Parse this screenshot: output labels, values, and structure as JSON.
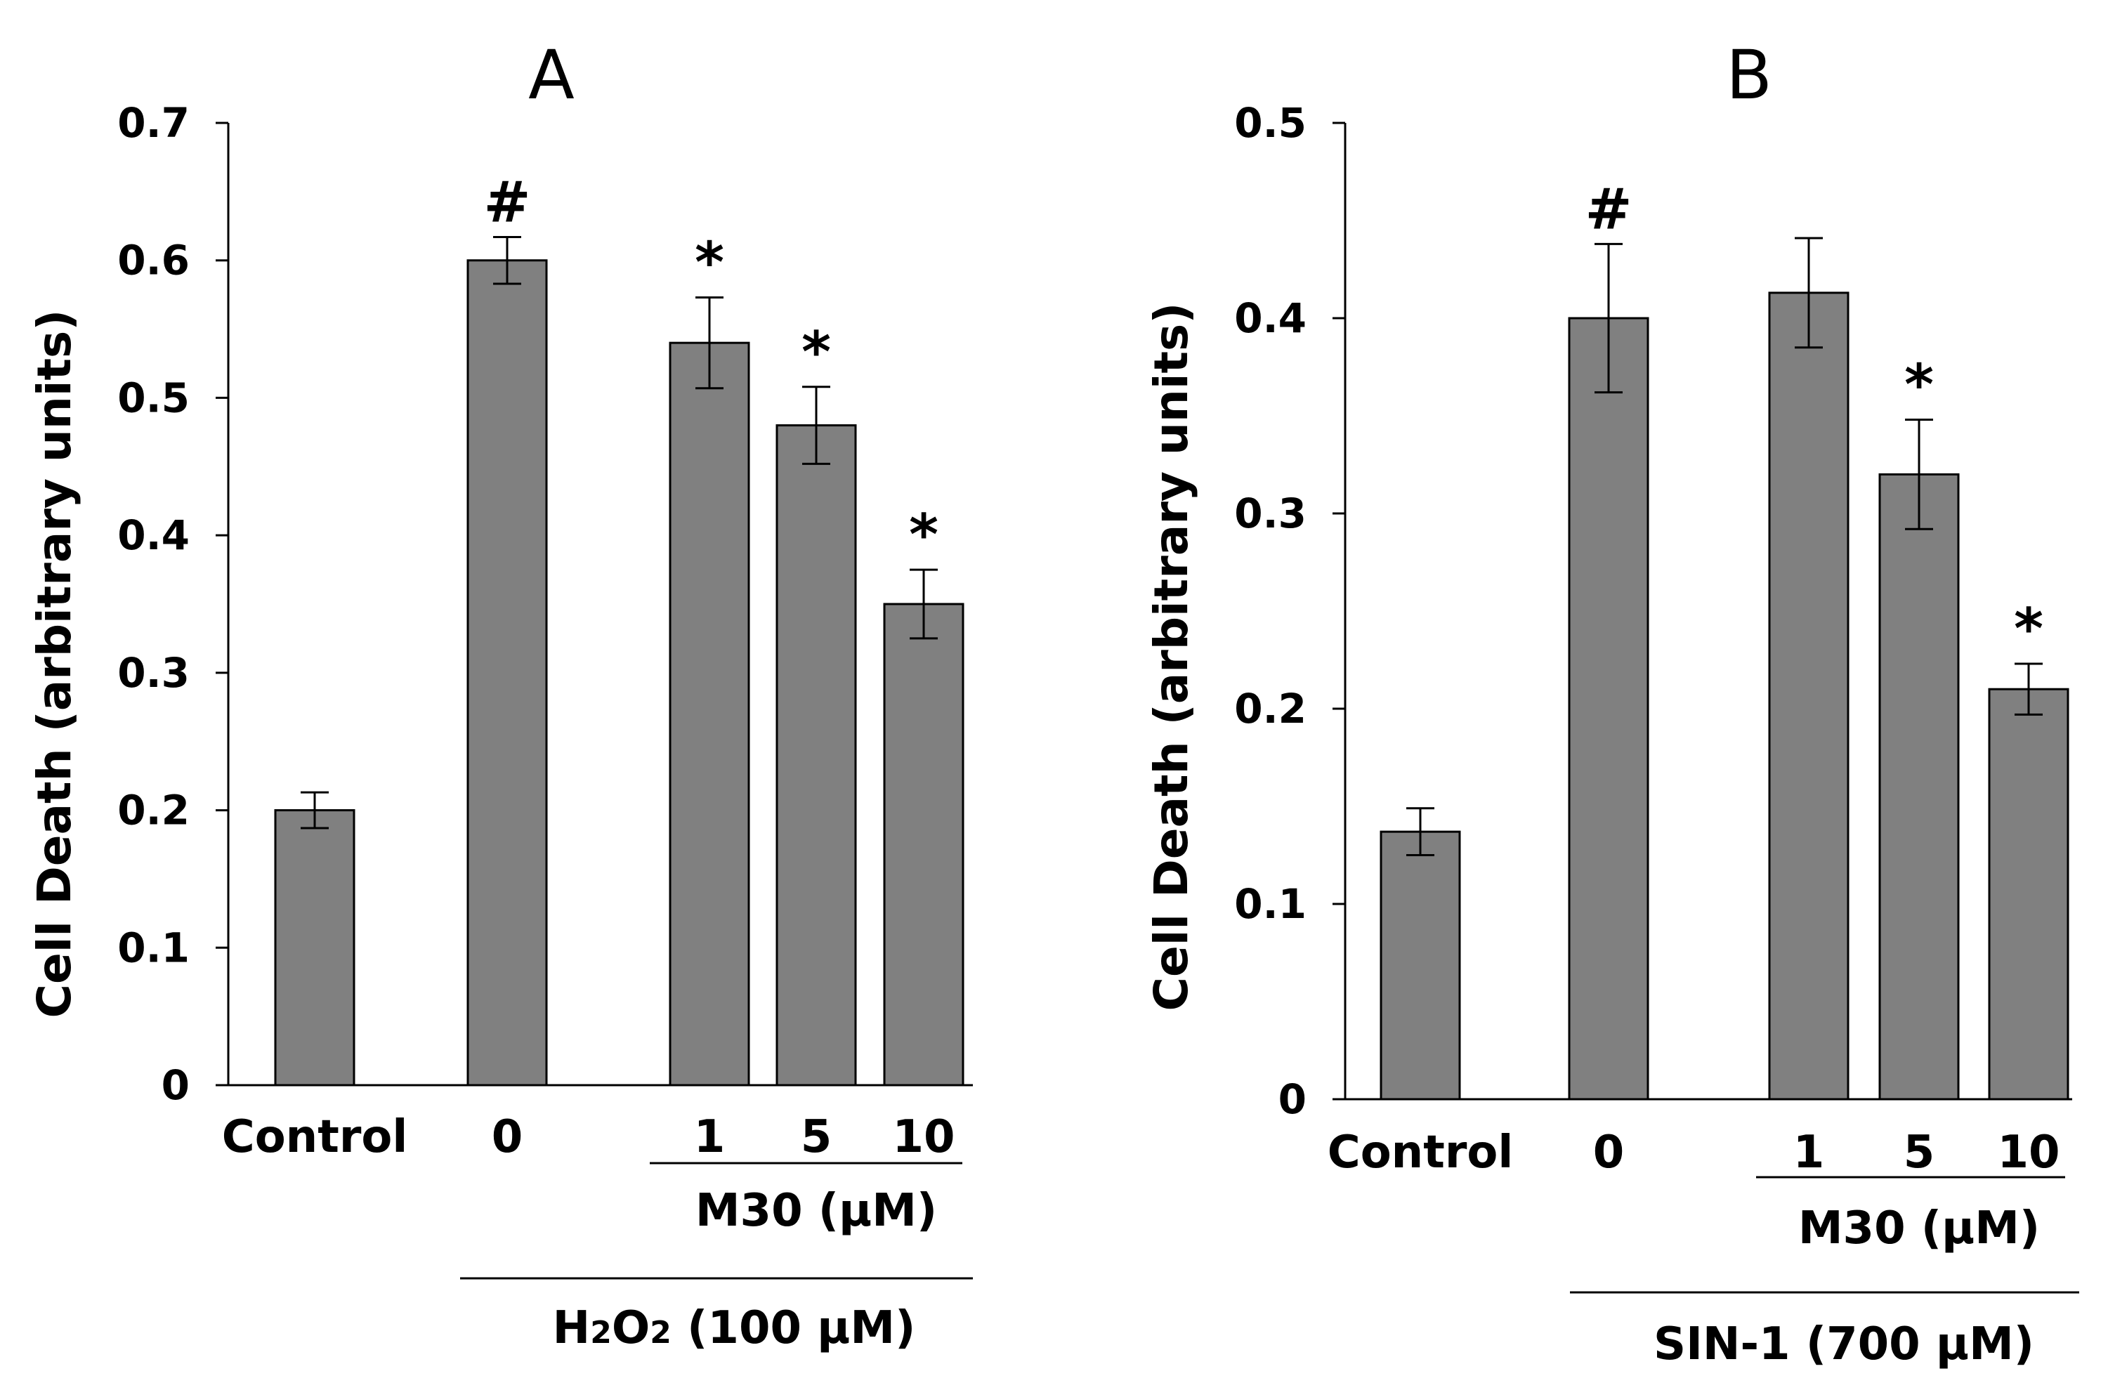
{
  "chart_data": [
    {
      "type": "bar",
      "panel_label": "A",
      "ylabel": "Cell Death (arbitrary units)",
      "ylim": [
        0,
        0.7
      ],
      "yticks": [
        "0",
        "0.1",
        "0.2",
        "0.3",
        "0.4",
        "0.5",
        "0.6",
        "0.7"
      ],
      "categories": [
        "Control",
        "0",
        "1",
        "5",
        "10"
      ],
      "values": [
        0.2,
        0.6,
        0.54,
        0.48,
        0.35
      ],
      "errors": [
        0.013,
        0.017,
        0.033,
        0.028,
        0.025
      ],
      "markers": [
        "",
        "#",
        "*",
        "*",
        "*"
      ],
      "group_labels": {
        "inner": "M30 (μM)",
        "outer": "H2O2 (100 μM)"
      }
    },
    {
      "type": "bar",
      "panel_label": "B",
      "ylabel": "Cell Death (arbitrary units)",
      "ylim": [
        0,
        0.5
      ],
      "yticks": [
        "0",
        "0.1",
        "0.2",
        "0.3",
        "0.4",
        "0.5"
      ],
      "categories": [
        "Control",
        "0",
        "1",
        "5",
        "10"
      ],
      "values": [
        0.137,
        0.4,
        0.413,
        0.32,
        0.21
      ],
      "errors": [
        0.012,
        0.038,
        0.028,
        0.028,
        0.013
      ],
      "markers": [
        "",
        "#",
        "",
        "*",
        "*"
      ],
      "group_labels": {
        "inner": "M30 (μM)",
        "outer": "SIN-1 (700 μM)"
      }
    }
  ],
  "colors": {
    "bar": "#808080",
    "bar_edge": "#000000",
    "axis": "#000000"
  }
}
